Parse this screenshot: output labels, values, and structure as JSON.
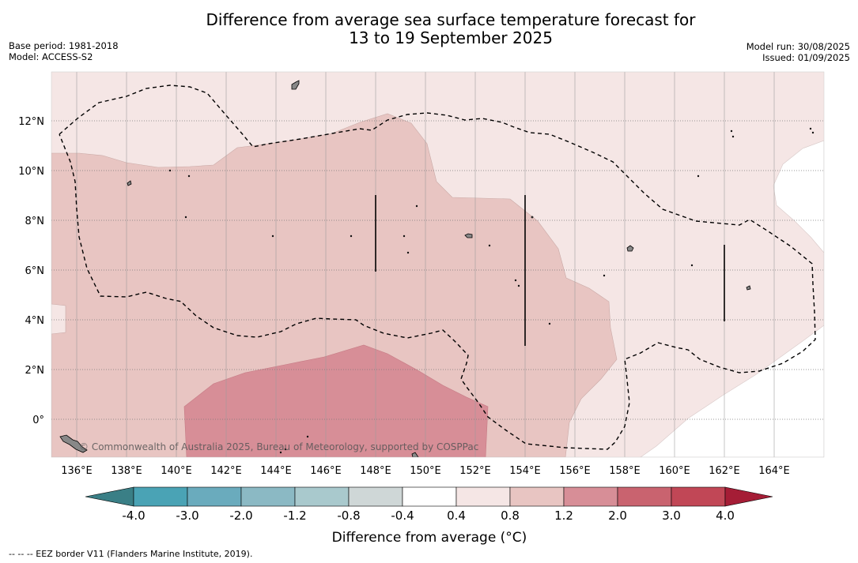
{
  "title": {
    "line1": "Difference from average sea surface temperature forecast for",
    "line2": "13 to 19 September 2025"
  },
  "meta_left": {
    "base_period": "Base period: 1981-2018",
    "model": "Model: ACCESS-S2"
  },
  "meta_right": {
    "model_run": "Model run: 30/08/2025",
    "issued": "Issued: 01/09/2025"
  },
  "map": {
    "lon_labels": [
      "136°E",
      "138°E",
      "140°E",
      "142°E",
      "144°E",
      "146°E",
      "148°E",
      "150°E",
      "152°E",
      "154°E",
      "156°E",
      "158°E",
      "160°E",
      "162°E",
      "164°E"
    ],
    "lat_labels": [
      "12°N",
      "10°N",
      "8°N",
      "6°N",
      "4°N",
      "2°N",
      "0°"
    ],
    "lon_range": [
      135,
      166
    ],
    "lat_range": [
      -1.5,
      14
    ],
    "copyright": "© Commonwealth of Australia 2025, Bureau of Meteorology, supported by COSPPac"
  },
  "colorbar": {
    "labels": [
      "-4.0",
      "-3.0",
      "-2.0",
      "-1.2",
      "-0.8",
      "-0.4",
      "0.4",
      "0.8",
      "1.2",
      "2.0",
      "3.0",
      "4.0"
    ],
    "colors": [
      "#3a7f86",
      "#4aa3b5",
      "#6aabbd",
      "#8bb9c4",
      "#a9c9cd",
      "#cfd7d7",
      "#ffffff",
      "#f5e6e5",
      "#e8c5c2",
      "#d78e97",
      "#c9636f",
      "#c14756",
      "#a51d36"
    ],
    "title": "Difference from average (°C)"
  },
  "footnote": "-- -- -- EEZ border V11 (Flanders Marine Institute, 2019)."
}
